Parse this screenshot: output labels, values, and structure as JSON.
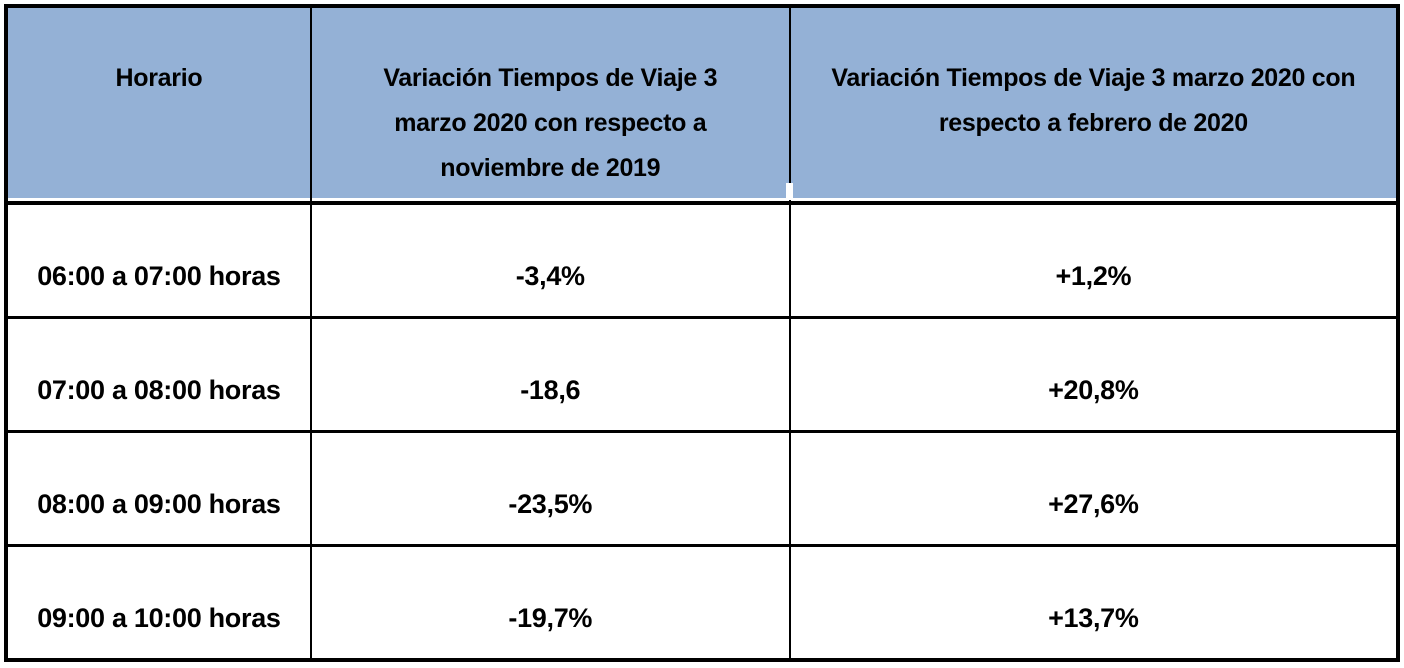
{
  "table": {
    "headers": [
      {
        "id": "horario",
        "lines": [
          "Horario"
        ]
      },
      {
        "id": "vs_nov_2019",
        "lines": [
          "Variación Tiempos de Viaje 3",
          "marzo 2020 con respecto a",
          "noviembre de 2019"
        ]
      },
      {
        "id": "vs_feb_2020",
        "lines": [
          "Variación Tiempos de Viaje 3 marzo 2020 con",
          "respecto a febrero de 2020"
        ]
      }
    ],
    "rows": [
      {
        "horario": "06:00 a 07:00 horas",
        "vs_nov_2019": "-3,4%",
        "vs_feb_2020": "+1,2%"
      },
      {
        "horario": "07:00 a 08:00 horas",
        "vs_nov_2019": "-18,6",
        "vs_feb_2020": "+20,8%"
      },
      {
        "horario": "08:00 a 09:00 horas",
        "vs_nov_2019": "-23,5%",
        "vs_feb_2020": "+27,6%"
      },
      {
        "horario": "09:00 a 10:00 horas",
        "vs_nov_2019": "-19,7%",
        "vs_feb_2020": "+13,7%"
      }
    ],
    "colors": {
      "header_bg": "#94B1D6",
      "border": "#000000",
      "text": "#000000",
      "page_bg": "#FFFFFF"
    }
  }
}
